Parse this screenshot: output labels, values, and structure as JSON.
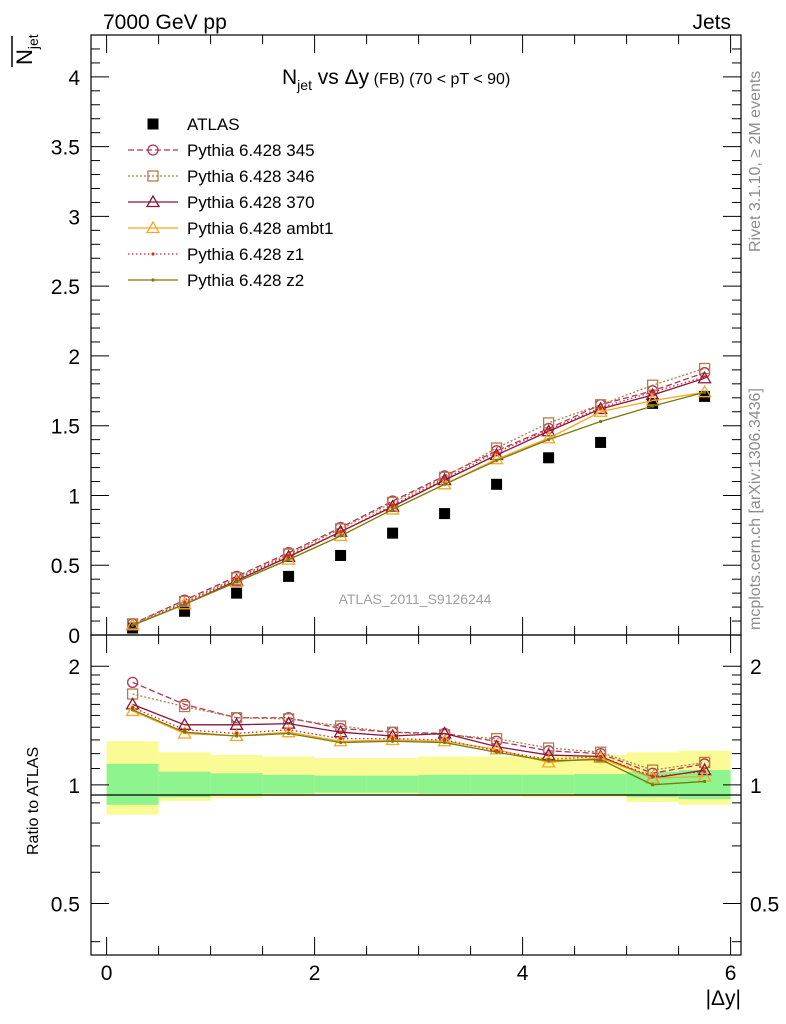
{
  "header": {
    "left": "7000 GeV pp",
    "right": "Jets"
  },
  "side": {
    "rivet": "Rivet 3.1.10, ≥ 2M events",
    "mcplots": "mcplots.cern.ch [arXiv:1306.3436]"
  },
  "chart_data": [
    {
      "type": "scatter",
      "title_main": "N",
      "title_sub": "jet",
      "title_vs": " vs Δy",
      "title_fb": " (FB)",
      "title_range": " (70 < pT <  90)",
      "ylabel_main": "N",
      "ylabel_sub": "jet",
      "xlabel": "|Δy|",
      "watermark": "ATLAS_2011_S9126244",
      "xlim": [
        -0.15,
        6.1
      ],
      "ylim": [
        0,
        4.3
      ],
      "yticks": [
        0,
        0.5,
        1,
        1.5,
        2,
        2.5,
        3,
        3.5,
        4
      ],
      "ytick_labels": [
        "0",
        "0.5",
        "1",
        "1.5",
        "2",
        "2.5",
        "3",
        "3.5",
        "4"
      ],
      "legend_position": "top-left",
      "x": [
        0.25,
        0.75,
        1.25,
        1.75,
        2.25,
        2.75,
        3.25,
        3.75,
        4.25,
        4.75,
        5.25,
        5.75
      ],
      "series": [
        {
          "name": "ATLAS",
          "color": "#000000",
          "marker": "filled-square",
          "dash": "none",
          "values": [
            0.05,
            0.17,
            0.3,
            0.42,
            0.57,
            0.73,
            0.87,
            1.08,
            1.27,
            1.38,
            1.66,
            1.71
          ]
        },
        {
          "name": "Pythia 6.428 345",
          "color": "#b5325a",
          "marker": "open-circle",
          "dash": "6,3",
          "values": [
            0.08,
            0.25,
            0.42,
            0.59,
            0.77,
            0.96,
            1.14,
            1.32,
            1.48,
            1.65,
            1.75,
            1.88
          ]
        },
        {
          "name": "Pythia 6.428 346",
          "color": "#b07d46",
          "marker": "open-square",
          "dash": "2,2",
          "values": [
            0.08,
            0.24,
            0.41,
            0.58,
            0.76,
            0.95,
            1.13,
            1.34,
            1.52,
            1.65,
            1.79,
            1.91
          ]
        },
        {
          "name": "Pythia 6.428 370",
          "color": "#8a1538",
          "marker": "open-triangle",
          "dash": "none",
          "values": [
            0.07,
            0.22,
            0.39,
            0.56,
            0.74,
            0.92,
            1.11,
            1.29,
            1.46,
            1.62,
            1.72,
            1.84
          ]
        },
        {
          "name": "Pythia 6.428 ambt1",
          "color": "#f5a623",
          "marker": "open-triangle",
          "dash": "none",
          "values": [
            0.07,
            0.22,
            0.38,
            0.54,
            0.71,
            0.9,
            1.08,
            1.26,
            1.41,
            1.6,
            1.68,
            1.74
          ]
        },
        {
          "name": "Pythia 6.428 z1",
          "color": "#d42a2a",
          "marker": "small-dot",
          "dash": "1.5,2.5",
          "values": [
            0.07,
            0.23,
            0.4,
            0.57,
            0.74,
            0.93,
            1.12,
            1.31,
            1.47,
            1.63,
            1.74,
            1.85
          ]
        },
        {
          "name": "Pythia 6.428 z2",
          "color": "#7a7a0a",
          "marker": "small-dot",
          "dash": "none",
          "values": [
            0.07,
            0.22,
            0.38,
            0.54,
            0.71,
            0.9,
            1.08,
            1.25,
            1.4,
            1.53,
            1.64,
            1.74
          ]
        }
      ]
    },
    {
      "type": "scatter",
      "ylabel": "Ratio to ATLAS",
      "ylim": [
        0.37,
        2.4
      ],
      "log_y": true,
      "yticks": [
        0.5,
        1,
        2
      ],
      "ytick_labels": [
        "0.5",
        "1",
        "2"
      ],
      "xlim": [
        -0.15,
        6.1
      ],
      "xticks": [
        0,
        2,
        4,
        6
      ],
      "xtick_labels": [
        "0",
        "2",
        "4",
        "6"
      ],
      "x": [
        0.25,
        0.75,
        1.25,
        1.75,
        2.25,
        2.75,
        3.25,
        3.75,
        4.25,
        4.75,
        5.25,
        5.75
      ],
      "bands": {
        "x_edges": [
          0,
          0.5,
          1,
          1.5,
          2,
          2.5,
          3,
          3.5,
          4,
          4.5,
          5,
          5.5,
          6
        ],
        "inner_low": [
          0.89,
          0.93,
          0.94,
          0.95,
          0.955,
          0.955,
          0.95,
          0.95,
          0.95,
          0.945,
          0.93,
          0.92
        ],
        "inner_high": [
          1.13,
          1.08,
          1.07,
          1.06,
          1.055,
          1.055,
          1.06,
          1.06,
          1.06,
          1.065,
          1.08,
          1.09
        ],
        "outer_low": [
          0.84,
          0.91,
          0.925,
          0.935,
          0.94,
          0.94,
          0.935,
          0.935,
          0.93,
          0.93,
          0.905,
          0.89
        ],
        "outer_high": [
          1.29,
          1.21,
          1.19,
          1.18,
          1.17,
          1.17,
          1.18,
          1.18,
          1.18,
          1.19,
          1.21,
          1.22
        ],
        "inner_color": "#8ef58e",
        "outer_color": "#fbfb96"
      },
      "series": [
        {
          "name": "Pythia 6.428 345",
          "color": "#b5325a",
          "marker": "open-circle",
          "dash": "6,3",
          "values": [
            1.82,
            1.6,
            1.48,
            1.48,
            1.39,
            1.36,
            1.35,
            1.29,
            1.22,
            1.2,
            1.07,
            1.13
          ]
        },
        {
          "name": "Pythia 6.428 346",
          "color": "#b07d46",
          "marker": "open-square",
          "dash": "2,2",
          "values": [
            1.7,
            1.58,
            1.48,
            1.47,
            1.41,
            1.36,
            1.34,
            1.31,
            1.24,
            1.21,
            1.09,
            1.14
          ]
        },
        {
          "name": "Pythia 6.428 370",
          "color": "#8a1538",
          "marker": "open-triangle",
          "dash": "none",
          "values": [
            1.6,
            1.42,
            1.42,
            1.43,
            1.36,
            1.33,
            1.35,
            1.25,
            1.19,
            1.18,
            1.04,
            1.09
          ]
        },
        {
          "name": "Pythia 6.428 ambt1",
          "color": "#f5a623",
          "marker": "open-triangle",
          "dash": "none",
          "values": [
            1.54,
            1.35,
            1.33,
            1.36,
            1.29,
            1.3,
            1.29,
            1.23,
            1.14,
            1.17,
            1.04,
            1.05
          ]
        },
        {
          "name": "Pythia 6.428 z1",
          "color": "#d42a2a",
          "marker": "small-dot",
          "dash": "1.5,2.5",
          "values": [
            1.57,
            1.38,
            1.35,
            1.38,
            1.31,
            1.31,
            1.3,
            1.22,
            1.16,
            1.18,
            1.05,
            1.08
          ]
        },
        {
          "name": "Pythia 6.428 z2",
          "color": "#7a7a0a",
          "marker": "small-dot",
          "dash": "none",
          "values": [
            1.55,
            1.36,
            1.33,
            1.35,
            1.28,
            1.29,
            1.28,
            1.21,
            1.15,
            1.16,
            1.0,
            1.02
          ]
        }
      ]
    }
  ]
}
